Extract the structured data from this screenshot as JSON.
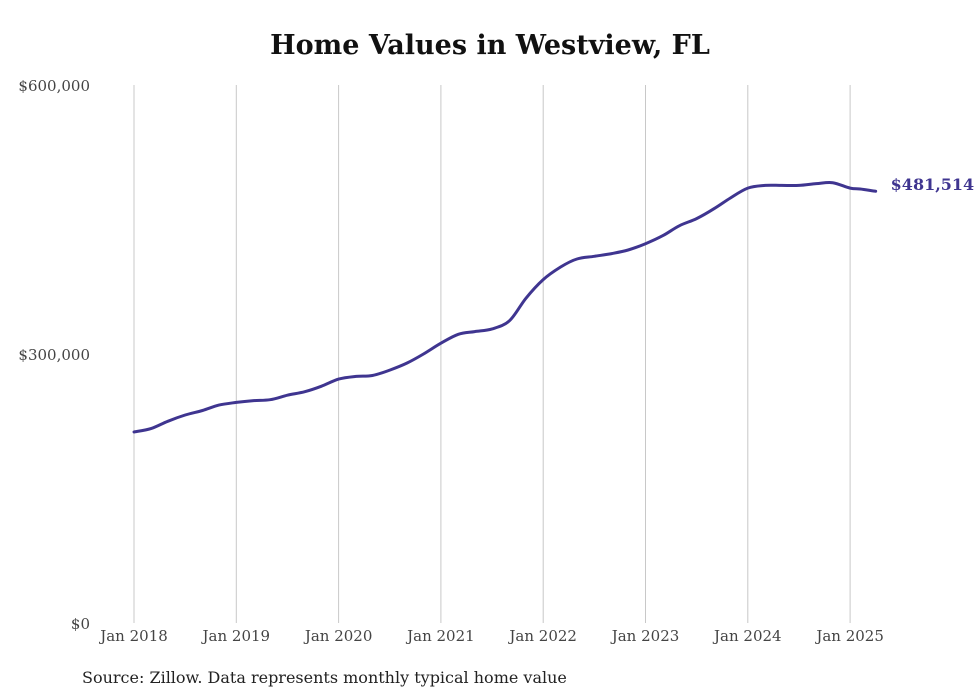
{
  "chart_data": {
    "type": "line",
    "title": "Home Values in Westview, FL",
    "source": "Source: Zillow. Data represents monthly typical home value",
    "xlabel": "",
    "ylabel": "",
    "ylim": [
      0,
      600000
    ],
    "y_ticks": [
      {
        "value": 0,
        "label": "$0"
      },
      {
        "value": 300000,
        "label": "$300,000"
      },
      {
        "value": 600000,
        "label": "$600,000"
      }
    ],
    "x_ticks": [
      {
        "value": 2018.0,
        "label": "Jan 2018"
      },
      {
        "value": 2019.0,
        "label": "Jan 2019"
      },
      {
        "value": 2020.0,
        "label": "Jan 2020"
      },
      {
        "value": 2021.0,
        "label": "Jan 2021"
      },
      {
        "value": 2022.0,
        "label": "Jan 2022"
      },
      {
        "value": 2023.0,
        "label": "Jan 2023"
      },
      {
        "value": 2024.0,
        "label": "Jan 2024"
      },
      {
        "value": 2025.0,
        "label": "Jan 2025"
      }
    ],
    "grid": "vertical",
    "line_color": "#3f3590",
    "end_label": "$481,514",
    "series": [
      {
        "x": [
          2018.0,
          2018.17,
          2018.33,
          2018.5,
          2018.67,
          2018.83,
          2019.0,
          2019.17,
          2019.33,
          2019.5,
          2019.67,
          2019.83,
          2020.0,
          2020.17,
          2020.33,
          2020.5,
          2020.67,
          2020.83,
          2021.0,
          2021.17,
          2021.33,
          2021.5,
          2021.67,
          2021.83,
          2022.0,
          2022.17,
          2022.33,
          2022.5,
          2022.67,
          2022.83,
          2023.0,
          2023.17,
          2023.33,
          2023.5,
          2023.67,
          2023.83,
          2024.0,
          2024.17,
          2024.33,
          2024.5,
          2024.67,
          2024.83,
          2025.0,
          2025.1,
          2025.25
        ],
        "values": [
          213000,
          217000,
          225000,
          232000,
          237000,
          243000,
          246000,
          248000,
          249000,
          254000,
          258000,
          264000,
          272000,
          275000,
          276000,
          282000,
          290000,
          300000,
          312000,
          322000,
          325000,
          328000,
          337000,
          362000,
          383000,
          397000,
          406000,
          409000,
          412000,
          416000,
          423000,
          432000,
          443000,
          451000,
          462000,
          474000,
          485000,
          488000,
          488000,
          488000,
          490000,
          491000,
          485000,
          484000,
          481514
        ]
      }
    ]
  }
}
